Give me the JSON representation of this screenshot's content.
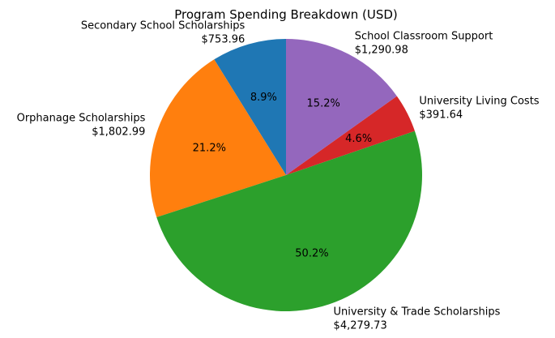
{
  "chart_data": {
    "type": "pie",
    "title": "Program Spending Breakdown (USD)",
    "categories": [
      "Secondary School Scholarships",
      "Orphanage Scholarships",
      "University & Trade Scholarships",
      "University Living Costs",
      "School Classroom Support"
    ],
    "values": [
      753.96,
      1802.99,
      4279.73,
      391.64,
      1290.98
    ],
    "value_labels": [
      "$753.96",
      "$1,802.99",
      "$4,279.73",
      "$391.64",
      "$1,290.98"
    ],
    "pct_labels": [
      "8.9%",
      "21.2%",
      "50.2%",
      "4.6%",
      "15.2%"
    ],
    "colors": [
      "#1f77b4",
      "#ff7f0e",
      "#2ca02c",
      "#d62728",
      "#9467bd"
    ],
    "start_angle": 90,
    "direction": "counterclockwise"
  }
}
